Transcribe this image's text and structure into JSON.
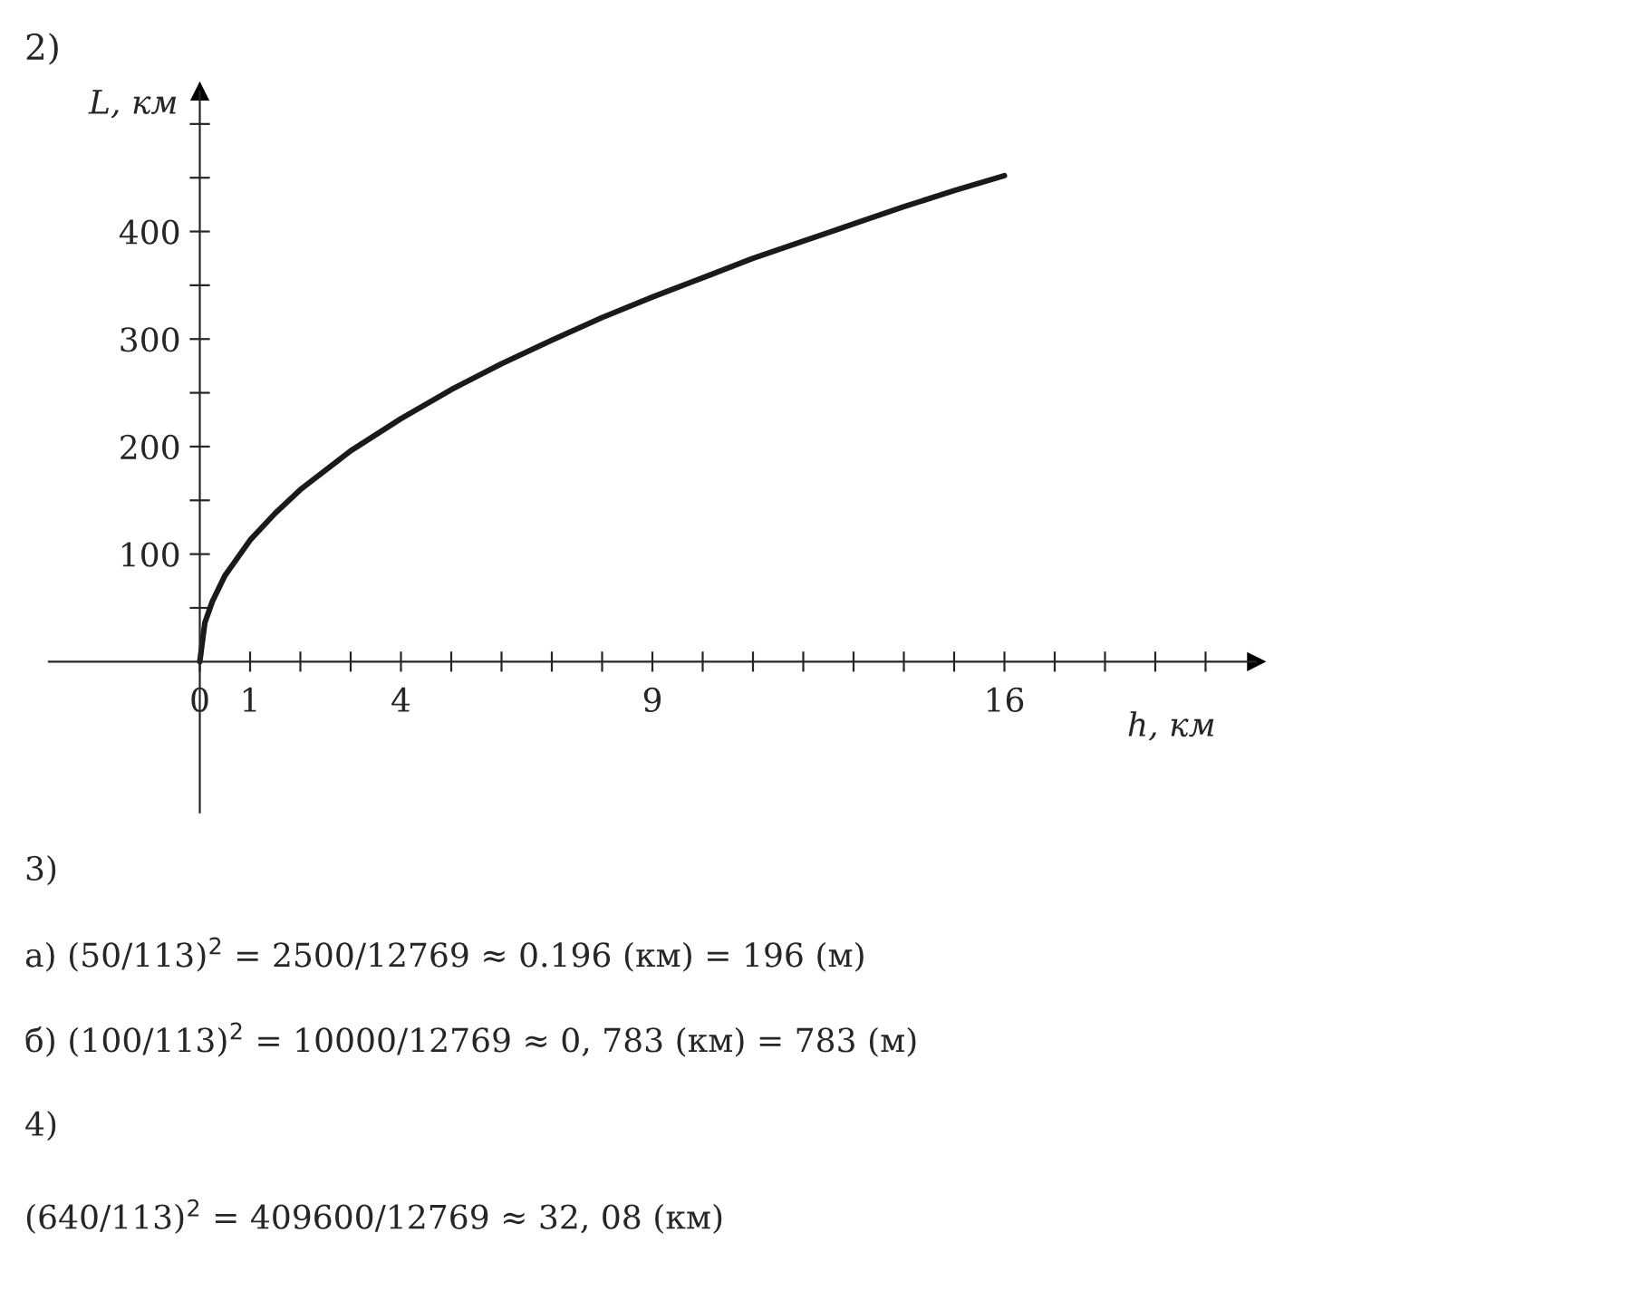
{
  "chart_data": {
    "type": "line",
    "title": "2)",
    "xlabel": "h, км",
    "ylabel": "L, км",
    "x": [
      0,
      0.1,
      0.25,
      0.5,
      1,
      1.5,
      2,
      3,
      4,
      5,
      6,
      7,
      8,
      9,
      10,
      11,
      12,
      13,
      14,
      15,
      16
    ],
    "series": [
      {
        "color": "#1a1a1a",
        "values": [
          0,
          36,
          56,
          80,
          113,
          138,
          160,
          196,
          226,
          253,
          277,
          299,
          320,
          339,
          357,
          375,
          391,
          407,
          423,
          438,
          452
        ]
      }
    ],
    "xlim": [
      -3,
      21
    ],
    "ylim": [
      -140,
      530
    ],
    "xticks": [
      {
        "value": 0,
        "label": "0"
      },
      1,
      {
        "value": 2,
        "label": null
      },
      {
        "value": 3,
        "label": null
      },
      4,
      {
        "value": 5,
        "label": null
      },
      {
        "value": 6,
        "label": null
      },
      {
        "value": 7,
        "label": null
      },
      {
        "value": 8,
        "label": null
      },
      9,
      {
        "value": 10,
        "label": null
      },
      {
        "value": 11,
        "label": null
      },
      {
        "value": 12,
        "label": null
      },
      {
        "value": 13,
        "label": null
      },
      {
        "value": 14,
        "label": null
      },
      {
        "value": 15,
        "label": null
      },
      16,
      {
        "value": 17,
        "label": null
      },
      {
        "value": 18,
        "label": null
      },
      {
        "value": 19,
        "label": null
      },
      {
        "value": 20,
        "label": null
      }
    ],
    "yticks": [
      {
        "value": 50,
        "label": null
      },
      100,
      {
        "value": 150,
        "label": null
      },
      200,
      {
        "value": 250,
        "label": null
      },
      300,
      {
        "value": 350,
        "label": null
      },
      400,
      {
        "value": 450,
        "label": null
      },
      {
        "value": 500,
        "label": null
      }
    ],
    "marker": "none",
    "line_style": "solid",
    "annotations": [
      "3)",
      "а) (50/113)$^{2}$ = 2500/12769 ≈ 0.196 (км) = 196 (м)",
      "б) (100/113)$^{2}$ = 10000/12769 ≈ 0, 783 (км) = 783 (м)",
      "4)",
      "(640/113)$^{2}$ = 409600/12769 ≈ 32, 08 (км)"
    ]
  }
}
